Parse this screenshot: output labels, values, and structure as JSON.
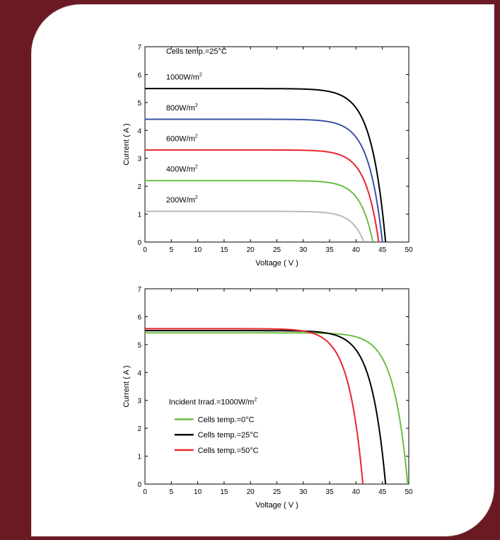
{
  "colors": {
    "sidebar": "#6b1a24",
    "card": "#ffffff",
    "black": "#000000",
    "blue": "#3b53a4",
    "red": "#e8262b",
    "green": "#6abf45",
    "gray": "#b8b8b8"
  },
  "chart_data": [
    {
      "type": "line",
      "title": "",
      "xlabel": "Voltage ( V )",
      "ylabel": "Current ( A )",
      "xlim": [
        0,
        50
      ],
      "ylim": [
        0,
        7
      ],
      "xticks": [
        "0",
        "5",
        "10",
        "15",
        "20",
        "25",
        "30",
        "35",
        "40",
        "45",
        "50"
      ],
      "yticks": [
        "0",
        "1",
        "2",
        "3",
        "4",
        "5",
        "6",
        "7"
      ],
      "annotation": "Cells temp.=25°C",
      "grid": false,
      "series": [
        {
          "name": "1000W/m²",
          "label_main": "1000W/m",
          "label_sup": "2",
          "color": "#000000",
          "isc": 5.5,
          "voc": 45.6,
          "knee": 2.7
        },
        {
          "name": "800W/m²",
          "label_main": "800W/m",
          "label_sup": "2",
          "color": "#3b53a4",
          "isc": 4.4,
          "voc": 45.0,
          "knee": 2.6
        },
        {
          "name": "600W/m²",
          "label_main": "600W/m",
          "label_sup": "2",
          "color": "#e8262b",
          "isc": 3.3,
          "voc": 44.3,
          "knee": 2.5
        },
        {
          "name": "400W/m²",
          "label_main": "400W/m",
          "label_sup": "2",
          "color": "#6abf45",
          "isc": 2.2,
          "voc": 43.2,
          "knee": 2.4
        },
        {
          "name": "200W/m²",
          "label_main": "200W/m",
          "label_sup": "2",
          "color": "#b8b8b8",
          "isc": 1.1,
          "voc": 41.5,
          "knee": 2.3
        }
      ]
    },
    {
      "type": "line",
      "title": "",
      "xlabel": "Voltage ( V )",
      "ylabel": "Current ( A )",
      "xlim": [
        0,
        50
      ],
      "ylim": [
        0,
        7
      ],
      "xticks": [
        "0",
        "5",
        "10",
        "15",
        "20",
        "25",
        "30",
        "35",
        "40",
        "45",
        "50"
      ],
      "yticks": [
        "0",
        "1",
        "2",
        "3",
        "4",
        "5",
        "6",
        "7"
      ],
      "annotation_main": "Incident Irrad.=1000W/m",
      "annotation_sup": "2",
      "legend_placement": "left",
      "grid": false,
      "series": [
        {
          "name": "Cells temp.=0°C",
          "color": "#6abf45",
          "isc": 5.42,
          "voc": 49.8,
          "knee": 2.7
        },
        {
          "name": "Cells temp.=25°C",
          "color": "#000000",
          "isc": 5.5,
          "voc": 45.6,
          "knee": 2.7
        },
        {
          "name": "Cells temp.=50°C",
          "color": "#e8262b",
          "isc": 5.57,
          "voc": 41.3,
          "knee": 2.7
        }
      ]
    }
  ]
}
